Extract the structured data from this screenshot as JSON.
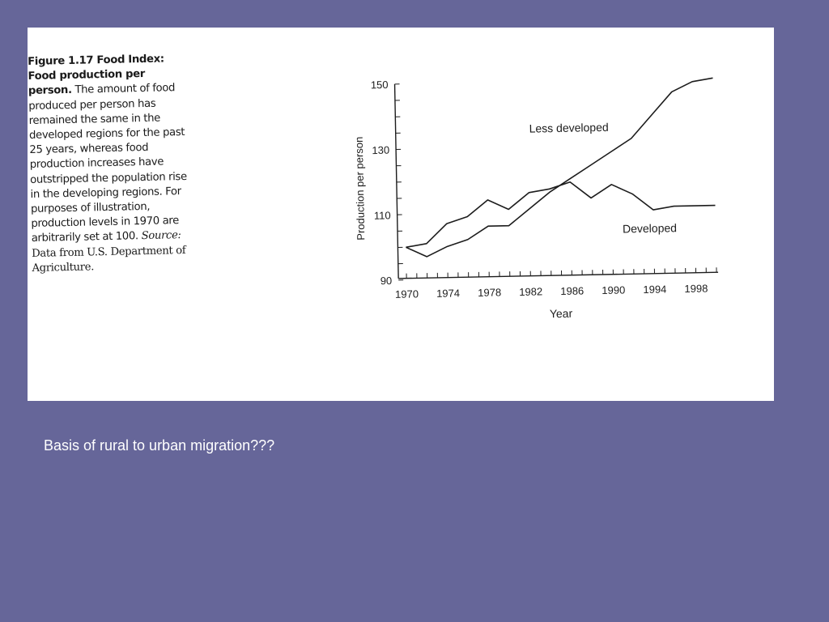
{
  "caption": {
    "figure_title": "Figure 1.17 Food Index: Food production per person.",
    "body": "The amount of food produced per person has remained the same in the developed regions for the past 25 years, whereas food production increases have outstripped the population rise in the developing regions. For purposes of illustration, production levels in 1970 are arbitrarily set at 100.",
    "source_label": "Source:",
    "source_text": "Data from U.S. Department of Agriculture."
  },
  "slide": {
    "note": "Basis of rural to urban migration???"
  },
  "chart_data": {
    "type": "line",
    "title": "",
    "xlabel": "Year",
    "ylabel": "Production per person",
    "xlim": [
      1970,
      2000
    ],
    "ylim": [
      90,
      150
    ],
    "xticks": [
      "1970",
      "1974",
      "1978",
      "1982",
      "1986",
      "1990",
      "1994",
      "1998"
    ],
    "yticks": [
      "90",
      "110",
      "130",
      "150"
    ],
    "grid": false,
    "series": [
      {
        "name": "Less developed",
        "x": [
          1970,
          1972,
          1974,
          1976,
          1978,
          1980,
          1982,
          1984,
          1986,
          1988,
          1990,
          1992,
          1994,
          1996,
          1998,
          2000
        ],
        "y": [
          100,
          97,
          100,
          102,
          106,
          106,
          111,
          116,
          120,
          124,
          128,
          132,
          139,
          146,
          149,
          150
        ]
      },
      {
        "name": "Developed",
        "x": [
          1970,
          1972,
          1974,
          1976,
          1978,
          1980,
          1982,
          1984,
          1986,
          1988,
          1990,
          1992,
          1994,
          1996,
          1998,
          2000
        ],
        "y": [
          100,
          101,
          107,
          109,
          114,
          111,
          116,
          117,
          119,
          114,
          118,
          115,
          110,
          111,
          111,
          111
        ]
      }
    ]
  }
}
